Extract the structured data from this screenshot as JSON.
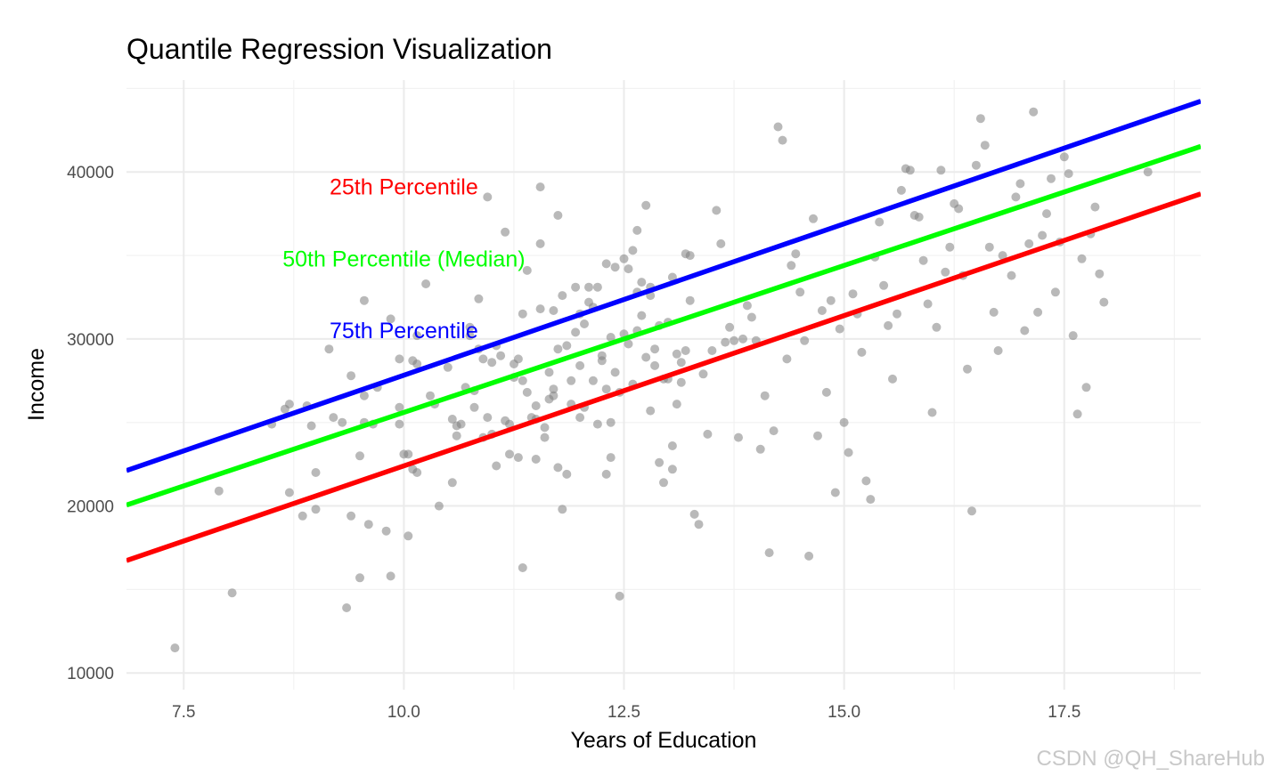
{
  "chart_data": {
    "type": "scatter",
    "title": "Quantile Regression Visualization",
    "xlabel": "Years of Education",
    "ylabel": "Income",
    "xlim": [
      6.85,
      19.05
    ],
    "ylim": [
      9000,
      45500
    ],
    "x_ticks": [
      7.5,
      10.0,
      12.5,
      15.0,
      17.5
    ],
    "x_tick_labels": [
      "7.5",
      "10.0",
      "12.5",
      "15.0",
      "17.5"
    ],
    "y_ticks": [
      10000,
      20000,
      30000,
      40000
    ],
    "y_tick_labels": [
      "10000",
      "20000",
      "30000",
      "40000"
    ],
    "grid": true,
    "point_color": "#7f7f7f",
    "series": [
      {
        "quantile": "75th",
        "color": "#0000ff",
        "intercept": 9700,
        "slope": 1813
      },
      {
        "quantile": "50th",
        "color": "#00ff00",
        "intercept": 8000,
        "slope": 1760
      },
      {
        "quantile": "25th",
        "color": "#ff0000",
        "intercept": 4400,
        "slope": 1800
      }
    ],
    "annotations": [
      {
        "text": "25th Percentile",
        "x": 10.0,
        "y": 39000,
        "color": "#ff0000"
      },
      {
        "text": "50th Percentile (Median)",
        "x": 10.0,
        "y": 34700,
        "color": "#00ff00"
      },
      {
        "text": "75th Percentile",
        "x": 10.0,
        "y": 30400,
        "color": "#0000ff"
      }
    ],
    "points": [
      [
        7.4,
        11500
      ],
      [
        7.9,
        20900
      ],
      [
        8.05,
        14800
      ],
      [
        8.5,
        24900
      ],
      [
        8.65,
        25800
      ],
      [
        8.7,
        26100
      ],
      [
        8.7,
        20800
      ],
      [
        8.85,
        19400
      ],
      [
        8.9,
        26000
      ],
      [
        8.95,
        24800
      ],
      [
        9.0,
        19800
      ],
      [
        9.0,
        22000
      ],
      [
        9.15,
        29400
      ],
      [
        9.2,
        25300
      ],
      [
        9.3,
        25000
      ],
      [
        9.35,
        13900
      ],
      [
        9.4,
        27800
      ],
      [
        9.4,
        19400
      ],
      [
        9.5,
        23000
      ],
      [
        9.5,
        15700
      ],
      [
        9.55,
        32300
      ],
      [
        9.55,
        26600
      ],
      [
        9.55,
        25000
      ],
      [
        9.6,
        18900
      ],
      [
        9.65,
        24900
      ],
      [
        9.7,
        27100
      ],
      [
        9.8,
        18500
      ],
      [
        9.85,
        31200
      ],
      [
        9.85,
        15800
      ],
      [
        9.95,
        28800
      ],
      [
        9.95,
        25900
      ],
      [
        9.95,
        24900
      ],
      [
        10.0,
        23100
      ],
      [
        10.05,
        23100
      ],
      [
        10.05,
        18200
      ],
      [
        10.1,
        22200
      ],
      [
        10.15,
        22000
      ],
      [
        10.1,
        28700
      ],
      [
        10.15,
        30200
      ],
      [
        10.15,
        28500
      ],
      [
        10.25,
        33300
      ],
      [
        10.3,
        26600
      ],
      [
        10.4,
        20000
      ],
      [
        10.55,
        21400
      ],
      [
        10.6,
        24800
      ],
      [
        10.6,
        24200
      ],
      [
        10.65,
        24900
      ],
      [
        10.75,
        30200
      ],
      [
        10.8,
        26900
      ],
      [
        10.8,
        25900
      ],
      [
        10.85,
        32400
      ],
      [
        10.85,
        29400
      ],
      [
        10.9,
        28800
      ],
      [
        10.9,
        24100
      ],
      [
        10.95,
        38500
      ],
      [
        11.0,
        28600
      ],
      [
        11.05,
        22400
      ],
      [
        11.05,
        29600
      ],
      [
        11.15,
        36400
      ],
      [
        11.2,
        24900
      ],
      [
        11.2,
        23100
      ],
      [
        11.25,
        28500
      ],
      [
        11.25,
        27700
      ],
      [
        11.3,
        22900
      ],
      [
        11.35,
        16300
      ],
      [
        11.35,
        31500
      ],
      [
        11.4,
        34100
      ],
      [
        11.45,
        25300
      ],
      [
        11.5,
        25200
      ],
      [
        11.5,
        22800
      ],
      [
        11.55,
        39100
      ],
      [
        11.55,
        35700
      ],
      [
        11.6,
        24700
      ],
      [
        11.65,
        28000
      ],
      [
        11.7,
        26600
      ],
      [
        11.7,
        31700
      ],
      [
        11.75,
        37400
      ],
      [
        11.75,
        22300
      ],
      [
        11.8,
        19800
      ],
      [
        11.85,
        21900
      ],
      [
        11.9,
        27500
      ],
      [
        11.95,
        33100
      ],
      [
        12.0,
        31500
      ],
      [
        12.0,
        28400
      ],
      [
        12.05,
        25900
      ],
      [
        12.1,
        32200
      ],
      [
        12.15,
        27500
      ],
      [
        12.2,
        33100
      ],
      [
        12.25,
        29000
      ],
      [
        12.3,
        34500
      ],
      [
        12.3,
        21900
      ],
      [
        12.35,
        25000
      ],
      [
        12.35,
        22900
      ],
      [
        12.4,
        34300
      ],
      [
        12.45,
        14600
      ],
      [
        12.5,
        30300
      ],
      [
        12.55,
        34200
      ],
      [
        12.6,
        35300
      ],
      [
        12.65,
        32800
      ],
      [
        12.65,
        30500
      ],
      [
        12.7,
        31400
      ],
      [
        12.75,
        38000
      ],
      [
        12.8,
        33100
      ],
      [
        12.8,
        32600
      ],
      [
        12.85,
        28400
      ],
      [
        12.9,
        22600
      ],
      [
        12.95,
        21400
      ],
      [
        13.0,
        27600
      ],
      [
        13.05,
        22200
      ],
      [
        13.05,
        23600
      ],
      [
        13.1,
        26100
      ],
      [
        13.15,
        28600
      ],
      [
        13.2,
        29300
      ],
      [
        13.25,
        35000
      ],
      [
        13.3,
        19500
      ],
      [
        13.35,
        18900
      ],
      [
        13.4,
        27900
      ],
      [
        13.45,
        24300
      ],
      [
        13.5,
        29300
      ],
      [
        13.55,
        37700
      ],
      [
        13.6,
        35700
      ],
      [
        13.65,
        29800
      ],
      [
        13.7,
        30700
      ],
      [
        13.75,
        29900
      ],
      [
        13.8,
        24100
      ],
      [
        13.85,
        30000
      ],
      [
        13.9,
        32000
      ],
      [
        13.95,
        31300
      ],
      [
        14.0,
        29900
      ],
      [
        14.05,
        23400
      ],
      [
        14.1,
        26600
      ],
      [
        14.15,
        17200
      ],
      [
        14.2,
        24500
      ],
      [
        14.25,
        42700
      ],
      [
        14.3,
        41900
      ],
      [
        14.35,
        28800
      ],
      [
        14.4,
        34400
      ],
      [
        14.45,
        35100
      ],
      [
        14.5,
        32800
      ],
      [
        14.55,
        29900
      ],
      [
        14.6,
        17000
      ],
      [
        14.65,
        37200
      ],
      [
        14.7,
        24200
      ],
      [
        14.75,
        31700
      ],
      [
        14.8,
        26800
      ],
      [
        14.85,
        32300
      ],
      [
        14.9,
        20800
      ],
      [
        14.95,
        30600
      ],
      [
        15.0,
        25000
      ],
      [
        15.05,
        23200
      ],
      [
        15.1,
        32700
      ],
      [
        15.15,
        31500
      ],
      [
        15.2,
        29200
      ],
      [
        15.25,
        21500
      ],
      [
        15.3,
        20400
      ],
      [
        15.35,
        34900
      ],
      [
        15.4,
        37000
      ],
      [
        15.45,
        33200
      ],
      [
        15.5,
        30800
      ],
      [
        15.55,
        27600
      ],
      [
        15.6,
        31500
      ],
      [
        15.65,
        38900
      ],
      [
        15.7,
        40200
      ],
      [
        15.75,
        40100
      ],
      [
        15.8,
        37400
      ],
      [
        15.85,
        37300
      ],
      [
        15.9,
        34700
      ],
      [
        15.95,
        32100
      ],
      [
        16.0,
        25600
      ],
      [
        16.05,
        30700
      ],
      [
        16.1,
        40100
      ],
      [
        16.15,
        34000
      ],
      [
        16.2,
        35500
      ],
      [
        16.25,
        38100
      ],
      [
        16.3,
        37800
      ],
      [
        16.35,
        33800
      ],
      [
        16.4,
        28200
      ],
      [
        16.45,
        19700
      ],
      [
        16.5,
        40400
      ],
      [
        16.55,
        43200
      ],
      [
        16.6,
        41600
      ],
      [
        16.65,
        35500
      ],
      [
        16.7,
        31600
      ],
      [
        16.75,
        29300
      ],
      [
        16.8,
        35000
      ],
      [
        16.9,
        33800
      ],
      [
        16.95,
        38500
      ],
      [
        17.0,
        39300
      ],
      [
        17.05,
        30500
      ],
      [
        17.1,
        35700
      ],
      [
        17.15,
        43600
      ],
      [
        17.2,
        31600
      ],
      [
        17.25,
        36200
      ],
      [
        17.3,
        37500
      ],
      [
        17.35,
        39600
      ],
      [
        17.4,
        32800
      ],
      [
        17.45,
        35800
      ],
      [
        17.5,
        40900
      ],
      [
        17.55,
        39900
      ],
      [
        17.6,
        30200
      ],
      [
        17.65,
        25500
      ],
      [
        17.7,
        34800
      ],
      [
        17.75,
        27100
      ],
      [
        17.8,
        36300
      ],
      [
        17.85,
        37900
      ],
      [
        17.9,
        33900
      ],
      [
        17.95,
        32200
      ],
      [
        18.45,
        40000
      ],
      [
        10.35,
        26100
      ],
      [
        10.5,
        28300
      ],
      [
        10.55,
        25200
      ],
      [
        10.7,
        27100
      ],
      [
        10.75,
        30700
      ],
      [
        10.95,
        25300
      ],
      [
        11.0,
        24300
      ],
      [
        11.1,
        29000
      ],
      [
        11.15,
        25100
      ],
      [
        11.3,
        28800
      ],
      [
        11.35,
        27500
      ],
      [
        11.4,
        26800
      ],
      [
        11.5,
        26000
      ],
      [
        11.55,
        31800
      ],
      [
        11.6,
        24100
      ],
      [
        11.65,
        26400
      ],
      [
        11.7,
        27000
      ],
      [
        11.75,
        29400
      ],
      [
        11.8,
        32600
      ],
      [
        11.85,
        29600
      ],
      [
        11.9,
        26100
      ],
      [
        11.95,
        30400
      ],
      [
        12.0,
        25300
      ],
      [
        12.05,
        30900
      ],
      [
        12.1,
        33100
      ],
      [
        12.15,
        31900
      ],
      [
        12.2,
        24900
      ],
      [
        12.25,
        28700
      ],
      [
        12.3,
        27000
      ],
      [
        12.35,
        30100
      ],
      [
        12.4,
        28000
      ],
      [
        12.45,
        26800
      ],
      [
        12.5,
        34800
      ],
      [
        12.55,
        29700
      ],
      [
        12.6,
        27300
      ],
      [
        12.65,
        36500
      ],
      [
        12.7,
        33400
      ],
      [
        12.75,
        28900
      ],
      [
        12.8,
        25700
      ],
      [
        12.85,
        29400
      ],
      [
        12.9,
        30800
      ],
      [
        12.95,
        27600
      ],
      [
        13.0,
        31000
      ],
      [
        13.05,
        33700
      ],
      [
        13.1,
        29100
      ],
      [
        13.15,
        27400
      ],
      [
        13.2,
        35100
      ],
      [
        13.25,
        32300
      ]
    ]
  },
  "watermark": "CSDN @QH_ShareHub"
}
